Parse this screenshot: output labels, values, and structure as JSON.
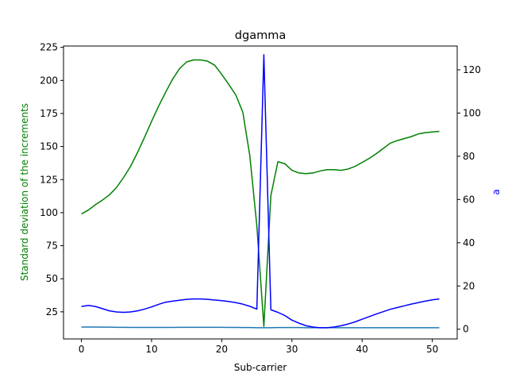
{
  "chart_data": {
    "type": "line",
    "title": "dgamma",
    "xlabel": "Sub-carrier",
    "ylabel_left": "Standard deviation of the increments",
    "ylabel_right": "a",
    "xlim": [
      -2.55,
      53.55
    ],
    "ylim_left": [
      4.5,
      226
    ],
    "ylim_right": [
      -4.5,
      131
    ],
    "x_ticks": [
      0,
      10,
      20,
      30,
      40,
      50
    ],
    "y_left_ticks": [
      25,
      50,
      75,
      100,
      125,
      150,
      175,
      200,
      225
    ],
    "y_right_ticks": [
      0,
      20,
      40,
      60,
      80,
      100,
      120
    ],
    "grid": false,
    "colors": {
      "left_axis": "#008000",
      "right_axis": "#0000ff",
      "left_series2": "#1f77b4"
    },
    "series": [
      {
        "axis": "left",
        "color": "#008000",
        "x": [
          0,
          1,
          2,
          3,
          4,
          5,
          6,
          7,
          8,
          9,
          10,
          11,
          12,
          13,
          14,
          15,
          16,
          17,
          18,
          19,
          20,
          21,
          22,
          23,
          24,
          25,
          26,
          27,
          28,
          29,
          30,
          31,
          32,
          33,
          34,
          35,
          36,
          37,
          38,
          39,
          40,
          41,
          42,
          43,
          44,
          45,
          46,
          47,
          48,
          49,
          50,
          51
        ],
        "values": [
          99,
          102,
          106,
          109.5,
          113.5,
          119,
          126.5,
          135,
          145.5,
          157,
          169,
          180.5,
          191,
          201,
          209,
          214,
          215.5,
          215.5,
          214.5,
          211.5,
          204.5,
          197,
          189,
          176,
          143,
          90,
          14,
          113,
          138.5,
          137,
          132,
          130,
          129.5,
          130,
          131.5,
          132.5,
          132.5,
          132,
          133,
          135,
          138,
          141,
          144.5,
          148.5,
          152.5,
          154.5,
          156,
          157.5,
          159.5,
          160.5,
          161,
          161.5
        ]
      },
      {
        "axis": "left",
        "color": "#1f77b4",
        "x": [
          0,
          1,
          2,
          3,
          4,
          5,
          6,
          7,
          8,
          9,
          10,
          11,
          12,
          13,
          14,
          15,
          16,
          17,
          18,
          19,
          20,
          21,
          22,
          23,
          24,
          25,
          26,
          27,
          28,
          29,
          30,
          31,
          32,
          33,
          34,
          35,
          36,
          37,
          38,
          39,
          40,
          41,
          42,
          43,
          44,
          45,
          46,
          47,
          48,
          49,
          50,
          51
        ],
        "values": [
          13.5,
          13.5,
          13.5,
          13.4,
          13.4,
          13.3,
          13.3,
          13.2,
          13.2,
          13.2,
          13.2,
          13.2,
          13.2,
          13.2,
          13.3,
          13.3,
          13.3,
          13.3,
          13.3,
          13.3,
          13.3,
          13.2,
          13.2,
          13.1,
          13.1,
          13.0,
          13.0,
          13.0,
          13.1,
          13.1,
          13.1,
          13.1,
          13.0,
          13.0,
          13.0,
          13.0,
          13.0,
          13.0,
          13.0,
          13.0,
          13.0,
          13.0,
          13.0,
          13.0,
          13.0,
          13.0,
          13.0,
          13.0,
          13.0,
          13.0,
          13.0,
          13.0
        ]
      },
      {
        "axis": "right",
        "color": "#0000ff",
        "x": [
          0,
          1,
          2,
          3,
          4,
          5,
          6,
          7,
          8,
          9,
          10,
          11,
          12,
          13,
          14,
          15,
          16,
          17,
          18,
          19,
          20,
          21,
          22,
          23,
          24,
          25,
          26,
          27,
          28,
          29,
          30,
          31,
          32,
          33,
          34,
          35,
          36,
          37,
          38,
          39,
          40,
          41,
          42,
          43,
          44,
          45,
          46,
          47,
          48,
          49,
          50,
          51
        ],
        "values": [
          10.5,
          11,
          10.5,
          9.5,
          8.5,
          8,
          7.8,
          8,
          8.5,
          9.3,
          10.3,
          11.5,
          12.5,
          13,
          13.4,
          13.8,
          14,
          14,
          13.8,
          13.5,
          13.2,
          12.8,
          12.3,
          11.6,
          10.6,
          9.3,
          127,
          9.0,
          7.8,
          6.3,
          4.2,
          2.8,
          1.6,
          1.0,
          0.7,
          0.7,
          1.0,
          1.6,
          2.4,
          3.4,
          4.6,
          5.8,
          7.0,
          8.1,
          9.2,
          10.0,
          10.8,
          11.6,
          12.3,
          13.0,
          13.6,
          14.0
        ]
      }
    ]
  }
}
